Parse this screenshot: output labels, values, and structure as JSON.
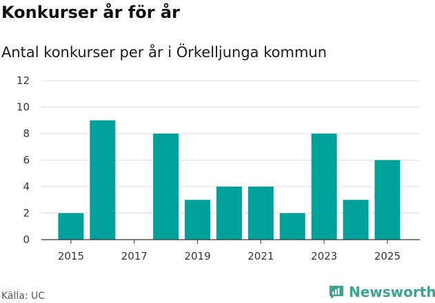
{
  "title": "Konkurser år för år",
  "subtitle": "Antal konkurser per år i Örkelljunga kommun",
  "source": "Källa: UC",
  "brand": {
    "name": "Newsworthy",
    "icon": "newsworthy-logo-icon",
    "color": "#3aa391"
  },
  "colors": {
    "bar": "#00a19a",
    "grid": "#dddddd",
    "axis": "#333333"
  },
  "chart_data": {
    "type": "bar",
    "x": [
      2015,
      2016,
      2017,
      2018,
      2019,
      2020,
      2021,
      2022,
      2023,
      2024,
      2025
    ],
    "values": [
      2,
      9,
      0,
      8,
      3,
      4,
      4,
      2,
      8,
      3,
      6
    ],
    "x_tick_labels": [
      "2015",
      "2017",
      "2019",
      "2021",
      "2023",
      "2025"
    ],
    "y_tick_labels": [
      "0",
      "2",
      "4",
      "6",
      "8",
      "10",
      "12"
    ],
    "ylim": [
      0,
      12
    ],
    "grid": "horizontal",
    "xlabel": "",
    "ylabel": ""
  }
}
